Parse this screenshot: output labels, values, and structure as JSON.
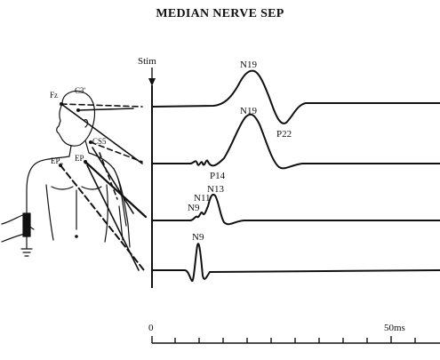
{
  "title": "MEDIAN NERVE SEP",
  "stimulus_label": "Stim",
  "electrode_labels": {
    "fz": "Fz",
    "c3": "C3'",
    "cs5": "CS5",
    "ep2_main": "EP",
    "ep2_sub": "2",
    "ep1_main": "EP",
    "ep1_sub": "1"
  },
  "trace_peaks": {
    "trace1_n19": "N19",
    "trace1_p22": "P22",
    "trace2_n19": "N19",
    "trace2_p14": "P14",
    "trace3_n13": "N13",
    "trace3_n11": "N11",
    "trace3_n9": "N9",
    "trace4_n9": "N9"
  },
  "time_axis": {
    "start_label": "0",
    "end_label": "50ms"
  }
}
